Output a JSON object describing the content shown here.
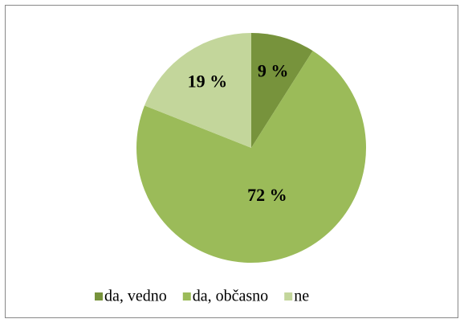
{
  "chart_data": {
    "type": "pie",
    "categories": [
      "da, vedno",
      "da, občasno",
      "ne"
    ],
    "values": [
      9,
      72,
      19
    ],
    "value_labels": [
      "9 %",
      "72 %",
      "19 %"
    ],
    "colors": [
      "#77933c",
      "#9bbb59",
      "#c3d69b"
    ],
    "legend": "bottom"
  }
}
